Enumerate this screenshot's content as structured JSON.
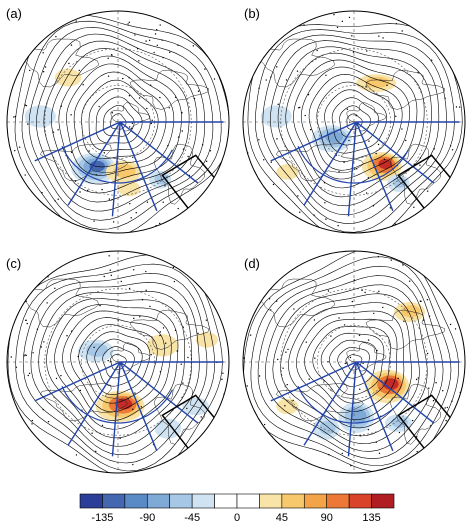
{
  "panels": [
    {
      "label": "(a)",
      "anomalies": [
        {
          "sign": "neg",
          "level": 4,
          "rx": 0.2,
          "ry": 0.14
        },
        {
          "sign": "pos",
          "level": 2,
          "rx": 0.16,
          "ry": 0.1
        },
        {
          "sign": "pos",
          "level": 1,
          "rx": 0.12,
          "ry": 0.08
        },
        {
          "sign": "neg",
          "level": 1,
          "rx": 0.14,
          "ry": 0.1
        },
        {
          "sign": "pos",
          "level": 1,
          "rx": 0.1,
          "ry": 0.07
        },
        {
          "sign": "neg",
          "level": 2,
          "rx": 0.1,
          "ry": 0.08
        }
      ]
    },
    {
      "label": "(b)",
      "anomalies": [
        {
          "sign": "pos",
          "level": 4,
          "rx": 0.18,
          "ry": 0.13
        },
        {
          "sign": "neg",
          "level": 3,
          "rx": 0.18,
          "ry": 0.12
        },
        {
          "sign": "pos",
          "level": 2,
          "rx": 0.18,
          "ry": 0.08
        },
        {
          "sign": "neg",
          "level": 1,
          "rx": 0.14,
          "ry": 0.1
        },
        {
          "sign": "pos",
          "level": 1,
          "rx": 0.1,
          "ry": 0.07
        },
        {
          "sign": "neg",
          "level": 2,
          "rx": 0.1,
          "ry": 0.08
        }
      ]
    },
    {
      "label": "(c)",
      "anomalies": [
        {
          "sign": "pos",
          "level": 4,
          "rx": 0.22,
          "ry": 0.14
        },
        {
          "sign": "neg",
          "level": 2,
          "rx": 0.16,
          "ry": 0.1
        },
        {
          "sign": "pos",
          "level": 1,
          "rx": 0.14,
          "ry": 0.1
        },
        {
          "sign": "neg",
          "level": 1,
          "rx": 0.12,
          "ry": 0.08
        },
        {
          "sign": "pos",
          "level": 1,
          "rx": 0.1,
          "ry": 0.07
        },
        {
          "sign": "neg",
          "level": 1,
          "rx": 0.12,
          "ry": 0.09
        }
      ]
    },
    {
      "label": "(d)",
      "anomalies": [
        {
          "sign": "pos",
          "level": 4,
          "rx": 0.2,
          "ry": 0.15
        },
        {
          "sign": "neg",
          "level": 3,
          "rx": 0.16,
          "ry": 0.14
        },
        {
          "sign": "pos",
          "level": 2,
          "rx": 0.14,
          "ry": 0.09
        },
        {
          "sign": "neg",
          "level": 2,
          "rx": 0.12,
          "ry": 0.1
        },
        {
          "sign": "pos",
          "level": 1,
          "rx": 0.1,
          "ry": 0.07
        },
        {
          "sign": "neg",
          "level": 2,
          "rx": 0.12,
          "ry": 0.08
        }
      ]
    }
  ],
  "colorbar": {
    "colors": [
      "#2b3f98",
      "#4467b0",
      "#5b8bc6",
      "#7fa9d6",
      "#a7c7e6",
      "#cfe3f2",
      "#ffffff",
      "#ffffff",
      "#f9e4a8",
      "#f8c86c",
      "#f3a449",
      "#ec7a36",
      "#d9432a",
      "#b01e23"
    ],
    "tick_labels": [
      "-135",
      "-90",
      "-45",
      "0",
      "45",
      "90",
      "135"
    ]
  },
  "palette": {
    "neg": [
      "#cfe3f2",
      "#a7c7e6",
      "#7fa9d6",
      "#4467b0"
    ],
    "pos": [
      "#f9e4a8",
      "#f8c86c",
      "#ec7a36",
      "#c42a26"
    ],
    "contour": "#000000",
    "sector": "#2244aa",
    "box": "#000000",
    "latitude": "#555555"
  }
}
